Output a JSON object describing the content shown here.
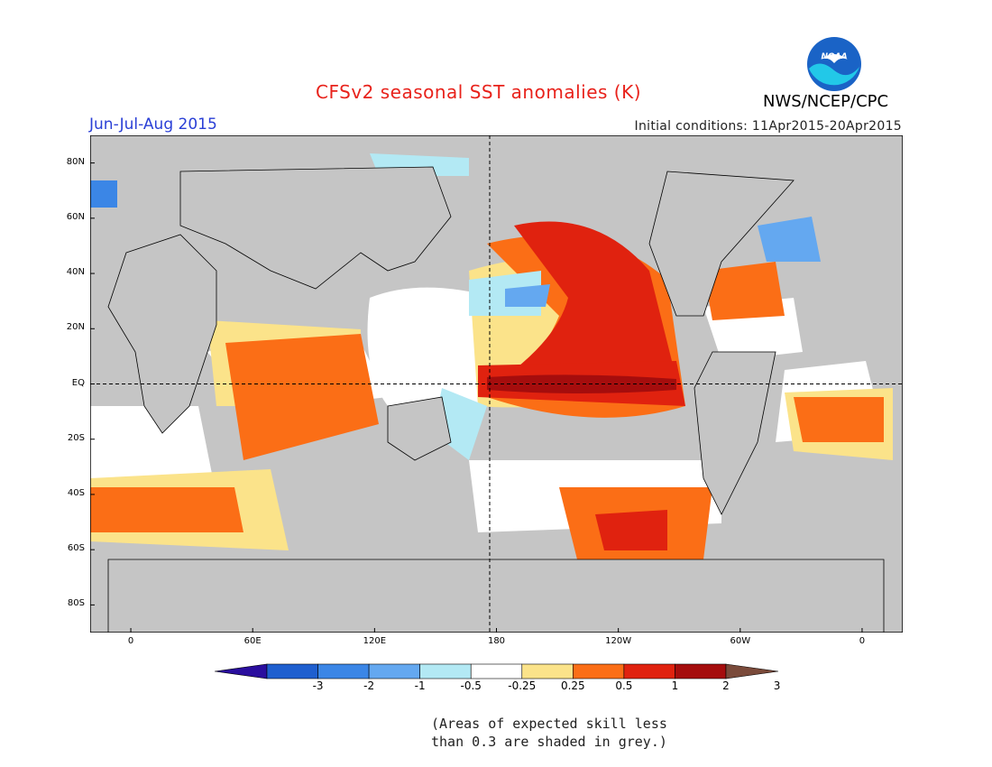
{
  "header": {
    "title": "CFSv2 seasonal SST anomalies (K)",
    "season": "Jun-Jul-Aug 2015",
    "initial_conditions": "Initial conditions: 11Apr2015-20Apr2015",
    "organization": "NWS/NCEP/CPC",
    "logo_text": "NOAA"
  },
  "map": {
    "projection": "cylindrical equidistant",
    "lon_range": [
      -20,
      380
    ],
    "lat_range": [
      -90,
      90
    ],
    "grey_note": "grey = land / low skill",
    "lat_labels": [
      {
        "text": "80N",
        "lat": 80
      },
      {
        "text": "60N",
        "lat": 60
      },
      {
        "text": "40N",
        "lat": 40
      },
      {
        "text": "20N",
        "lat": 20
      },
      {
        "text": "EQ",
        "lat": 0
      },
      {
        "text": "20S",
        "lat": -20
      },
      {
        "text": "40S",
        "lat": -40
      },
      {
        "text": "60S",
        "lat": -60
      },
      {
        "text": "80S",
        "lat": -80
      }
    ],
    "lon_labels": [
      {
        "text": "0",
        "lon": 0
      },
      {
        "text": "60E",
        "lon": 60
      },
      {
        "text": "120E",
        "lon": 120
      },
      {
        "text": "180",
        "lon": 180
      },
      {
        "text": "120W",
        "lon": 240
      },
      {
        "text": "60W",
        "lon": 300
      },
      {
        "text": "0",
        "lon": 360
      }
    ]
  },
  "colorbar": {
    "ticks": [
      "-3",
      "-2",
      "-1",
      "-0.5",
      "-0.25",
      "0.25",
      "0.5",
      "1",
      "2",
      "3"
    ],
    "colors": [
      "#2a0e9e",
      "#1f5fcf",
      "#3b86e6",
      "#64a8f0",
      "#b3e9f4",
      "#ffffff",
      "#fbe38a",
      "#fb6e16",
      "#e0220f",
      "#a50d0d",
      "#7a4a3a"
    ]
  },
  "note": {
    "line1": "(Areas of expected skill less",
    "line2": "than 0.3 are shaded in grey.)"
  }
}
